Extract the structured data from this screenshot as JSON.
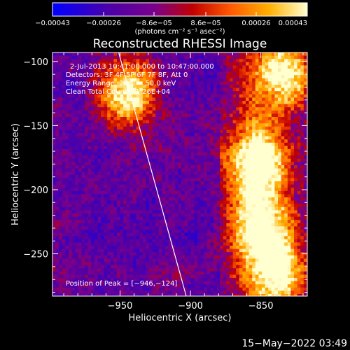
{
  "chart_data": {
    "type": "heatmap",
    "title": "Reconstructed RHESSI Image",
    "xlabel": "Heliocentric X (arcsec)",
    "ylabel": "Heliocentric Y (arcsec)",
    "xlim": [
      -998,
      -817
    ],
    "ylim": [
      -283,
      -93
    ],
    "x_ticks": [
      -950,
      -900,
      -850
    ],
    "x_tick_labels": [
      "−950",
      "−900",
      "−850"
    ],
    "y_ticks": [
      -100,
      -150,
      -200,
      -250
    ],
    "y_tick_labels": [
      "−100",
      "−150",
      "−200",
      "−250"
    ],
    "colorbar": {
      "range": [
        -0.00043,
        0.00043
      ],
      "tick_labels": [
        "−0.00043",
        "−0.00026",
        "−8.6e−05",
        "8.6e−05",
        "0.00026",
        "0.00043"
      ],
      "label": "(photons cm⁻² s⁻¹ asec⁻²)",
      "colors": [
        "#0000ff",
        "#4b00a8",
        "#7a008c",
        "#c00000",
        "#ff5a00",
        "#ffb000",
        "#ffffd0"
      ]
    },
    "annotations": {
      "time": "2-Jul-2013 10:41:00.000 to 10:47:00.000",
      "detectors": "Detectors: 3F 4F 5F 6F 7F 8F, Att 0",
      "energy": "Energy Range: 25.0 − 50.0 keV",
      "clean": "Clean     Total Counts: 1.26E+04",
      "peak": "Position of Peak = [−946,−124]"
    },
    "peak": {
      "x": -946,
      "y": -124
    },
    "limb_line": {
      "x": [
        -951,
        -903
      ],
      "y": [
        -93,
        -283
      ]
    },
    "bright_sources": [
      {
        "x": -945,
        "y": -125,
        "intensity": 1.0
      },
      {
        "x": -853,
        "y": -180,
        "intensity": 0.95
      },
      {
        "x": -850,
        "y": -230,
        "intensity": 0.85
      },
      {
        "x": -833,
        "y": -110,
        "intensity": 0.8
      },
      {
        "x": -838,
        "y": -265,
        "intensity": 0.75
      }
    ]
  },
  "footer": {
    "date": "15−May−2022 03:49"
  }
}
